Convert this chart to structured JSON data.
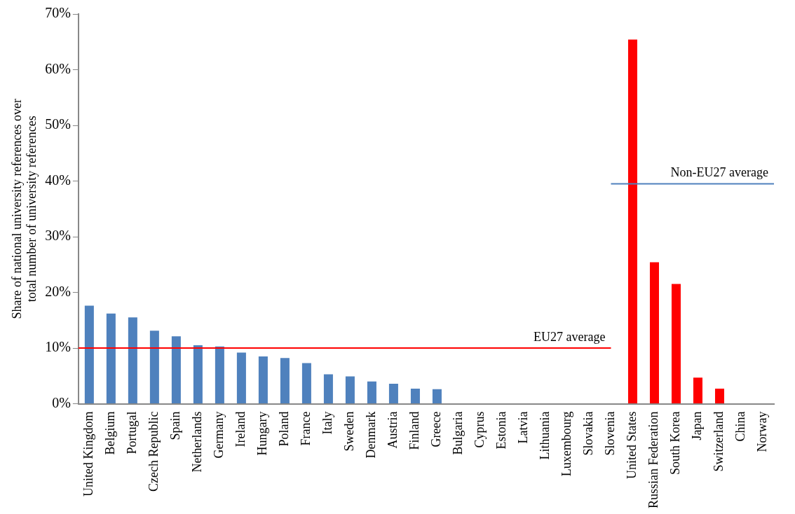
{
  "chart_data": {
    "type": "bar",
    "ylabel": "Share of national university references over total number of university references",
    "categories": [
      "United Kingdom",
      "Belgium",
      "Portugal",
      "Czech Republic",
      "Spain",
      "Netherlands",
      "Germany",
      "Ireland",
      "Hungary",
      "Poland",
      "France",
      "Italy",
      "Sweden",
      "Denmark",
      "Austria",
      "Finland",
      "Greece",
      "Bulgaria",
      "Cyprus",
      "Estonia",
      "Latvia",
      "Lithuania",
      "Luxembourg",
      "Slovakia",
      "Slovenia",
      "United States",
      "Russian Federation",
      "South Korea",
      "Japan",
      "Switzerland",
      "China",
      "Norway"
    ],
    "values": [
      17.6,
      16.2,
      15.5,
      13.1,
      12.1,
      10.5,
      10.3,
      9.2,
      8.5,
      8.2,
      7.3,
      5.3,
      4.9,
      4.0,
      3.6,
      2.7,
      2.6,
      0,
      0,
      0,
      0,
      0,
      0,
      0,
      0,
      65.4,
      25.4,
      21.5,
      4.7,
      2.7,
      0,
      0
    ],
    "colors": [
      "#4f81bd",
      "#4f81bd",
      "#4f81bd",
      "#4f81bd",
      "#4f81bd",
      "#4f81bd",
      "#4f81bd",
      "#4f81bd",
      "#4f81bd",
      "#4f81bd",
      "#4f81bd",
      "#4f81bd",
      "#4f81bd",
      "#4f81bd",
      "#4f81bd",
      "#4f81bd",
      "#4f81bd",
      "#4f81bd",
      "#4f81bd",
      "#4f81bd",
      "#4f81bd",
      "#4f81bd",
      "#4f81bd",
      "#4f81bd",
      "#4f81bd",
      "#ff0000",
      "#ff0000",
      "#ff0000",
      "#ff0000",
      "#ff0000",
      "#ff0000",
      "#ff0000"
    ],
    "ylim": [
      0,
      70
    ],
    "yticks": [
      {
        "value": 0,
        "label": "0%"
      },
      {
        "value": 10,
        "label": "10%"
      },
      {
        "value": 20,
        "label": "20%"
      },
      {
        "value": 30,
        "label": "30%"
      },
      {
        "value": 40,
        "label": "40%"
      },
      {
        "value": 50,
        "label": "50%"
      },
      {
        "value": 60,
        "label": "60%"
      },
      {
        "value": 70,
        "label": "70%"
      }
    ],
    "ref_lines": [
      {
        "axis": "y",
        "value": 10,
        "label": "EU27 average",
        "color": "#ff0000"
      },
      {
        "axis": "y",
        "value": 39.5,
        "label": "Non-EU27 average",
        "color": "#4f81bd"
      }
    ],
    "grid": false,
    "legend": false
  }
}
